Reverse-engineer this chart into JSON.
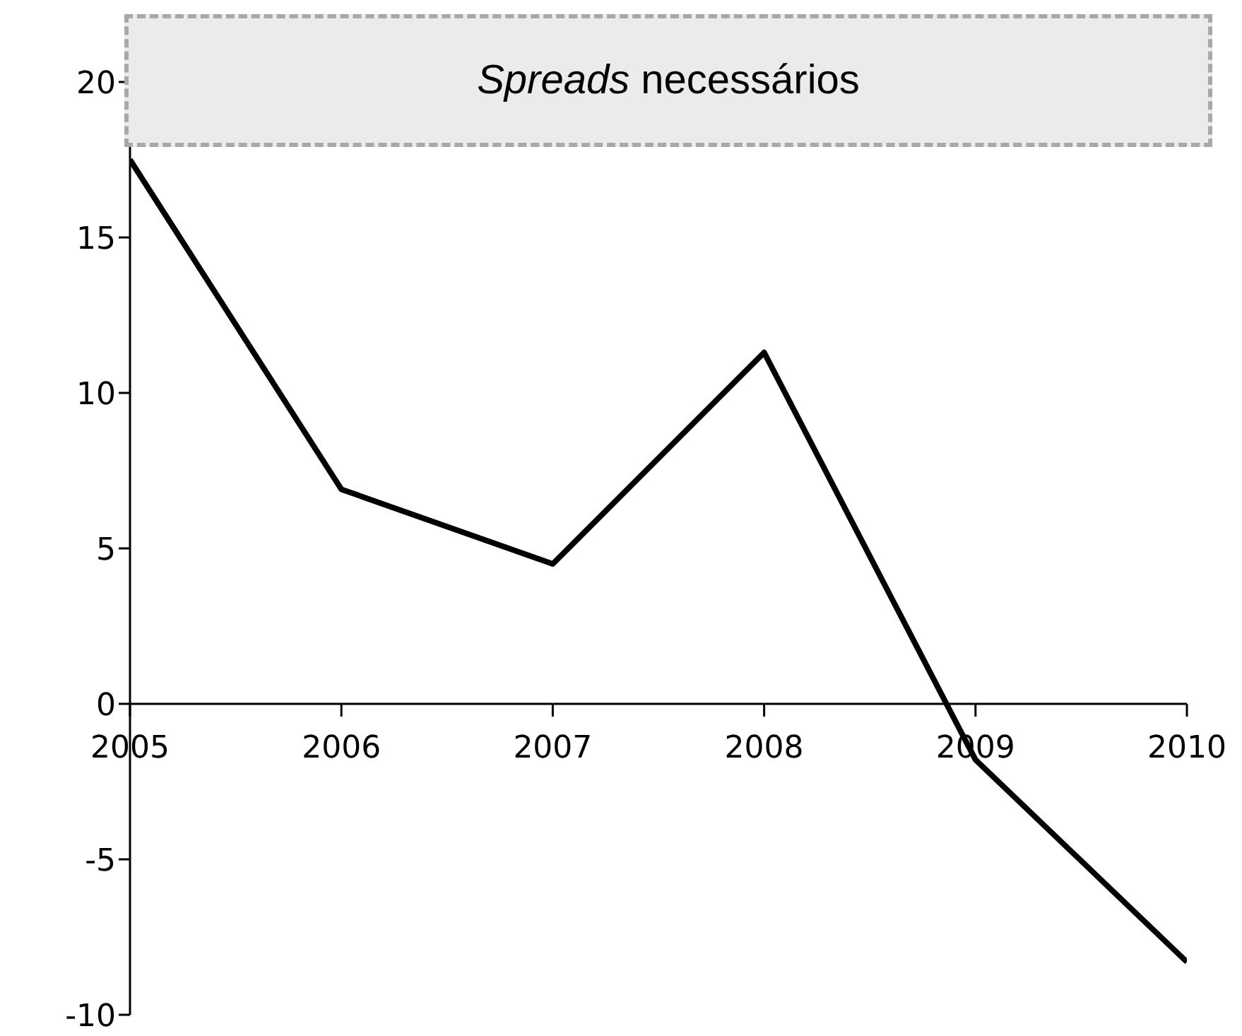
{
  "chart_data": {
    "type": "line",
    "title": "Spreads necessários",
    "categories": [
      "2005",
      "2006",
      "2007",
      "2008",
      "2009",
      "2010"
    ],
    "series": [
      {
        "color": "#000000",
        "values": [
          17.5,
          6.9,
          4.5,
          11.3,
          -1.8,
          -8.3
        ]
      }
    ],
    "ylim": [
      -10,
      20
    ],
    "yticks": [
      -10,
      -5,
      0,
      5,
      10,
      15,
      20
    ],
    "grid": false,
    "legend": false,
    "marker": "none"
  }
}
